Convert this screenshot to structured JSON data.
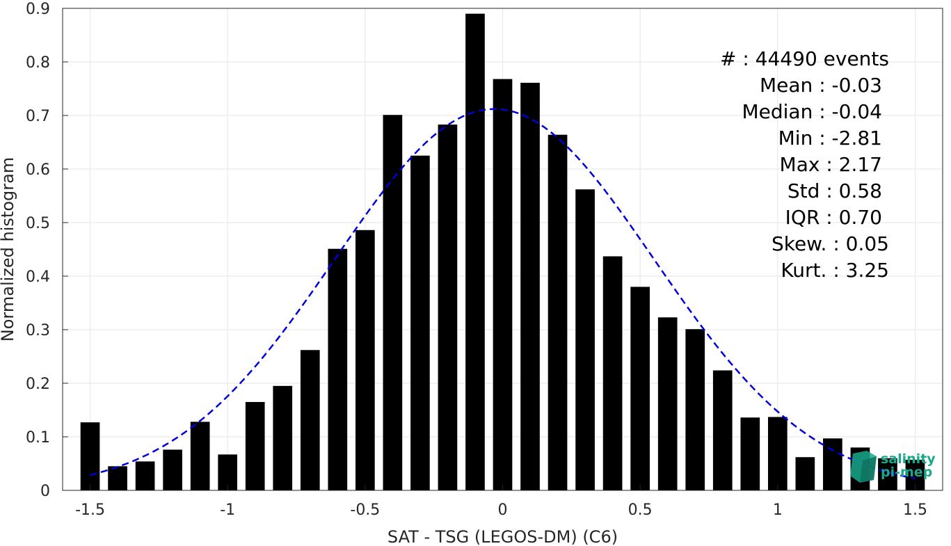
{
  "chart_data": {
    "type": "bar",
    "xlabel": "SAT - TSG (LEGOS-DM) (C6)",
    "ylabel": "Normalized histogram",
    "xlim": [
      -1.6,
      1.6
    ],
    "ylim": [
      0,
      0.9
    ],
    "xticks": [
      -1.5,
      -1,
      -0.5,
      0,
      0.5,
      1,
      1.5
    ],
    "xtick_labels": [
      "-1.5",
      "-1",
      "-0.5",
      "0",
      "0.5",
      "1",
      "1.5"
    ],
    "yticks": [
      0,
      0.1,
      0.2,
      0.3,
      0.4,
      0.5,
      0.6,
      0.7,
      0.8,
      0.9
    ],
    "ytick_labels": [
      "0",
      "0.1",
      "0.2",
      "0.3",
      "0.4",
      "0.5",
      "0.6",
      "0.7",
      "0.8",
      "0.9"
    ],
    "grid": true,
    "bin_width": 0.1,
    "bars": {
      "x": [
        -1.5,
        -1.4,
        -1.3,
        -1.2,
        -1.1,
        -1.0,
        -0.9,
        -0.8,
        -0.7,
        -0.6,
        -0.5,
        -0.4,
        -0.3,
        -0.2,
        -0.1,
        0.0,
        0.1,
        0.2,
        0.3,
        0.4,
        0.5,
        0.6,
        0.7,
        0.8,
        0.9,
        1.0,
        1.1,
        1.2,
        1.3,
        1.4,
        1.5
      ],
      "values": [
        0.127,
        0.045,
        0.054,
        0.076,
        0.128,
        0.067,
        0.165,
        0.195,
        0.262,
        0.451,
        0.486,
        0.701,
        0.625,
        0.683,
        0.89,
        0.768,
        0.761,
        0.664,
        0.562,
        0.437,
        0.38,
        0.323,
        0.301,
        0.224,
        0.136,
        0.137,
        0.062,
        0.097,
        0.08,
        0.06,
        0.057
      ],
      "color": "#000000"
    },
    "fit_curve": {
      "style": "dashed",
      "color": "#0000dd",
      "mean": -0.03,
      "std": 0.58,
      "peak": 0.712,
      "x_range": [
        -1.5,
        1.5
      ]
    },
    "stats": [
      {
        "label": "#  : 44490 events"
      },
      {
        "label": "Mean : -0.03"
      },
      {
        "label": "Median : -0.04"
      },
      {
        "label": "Min : -2.81"
      },
      {
        "label": "Max : 2.17"
      },
      {
        "label": "Std : 0.58"
      },
      {
        "label": "IQR : 0.70"
      },
      {
        "label": "Skew. : 0.05"
      },
      {
        "label": "Kurt. : 3.25"
      }
    ],
    "logo": {
      "line1": "salinity",
      "line2": "pi-mep",
      "color": "#1aa88c"
    }
  }
}
